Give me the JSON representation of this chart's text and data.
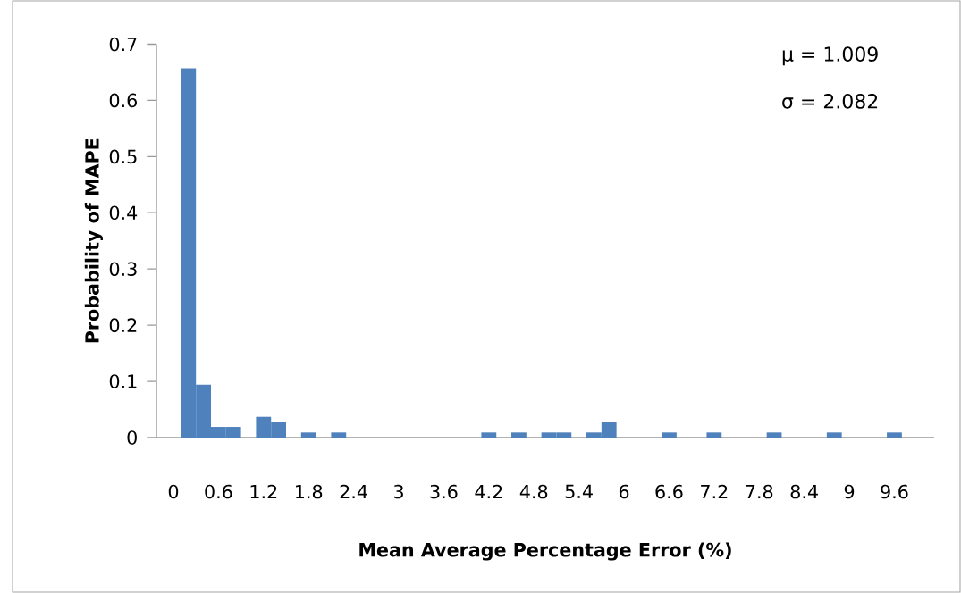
{
  "chart_data": {
    "type": "bar",
    "xlabel": "Mean Average Percentage Error (%)",
    "ylabel": "Probability of MAPE",
    "categories": [
      "0",
      null,
      null,
      "0.6",
      null,
      null,
      "1.2",
      null,
      null,
      "1.8",
      null,
      null,
      "2.4",
      null,
      null,
      "3",
      null,
      null,
      "3.6",
      null,
      null,
      "4.2",
      null,
      null,
      "4.8",
      null,
      null,
      "5.4",
      null,
      null,
      "6",
      null,
      null,
      "6.6",
      null,
      null,
      "7.2",
      null,
      null,
      "7.8",
      null,
      null,
      "8.4",
      null,
      null,
      "9",
      null,
      null,
      "9.6"
    ],
    "values": [
      0,
      0.657,
      0.094,
      0.019,
      0.019,
      0,
      0.037,
      0.028,
      0,
      0.009,
      0,
      0.009,
      0,
      0,
      0,
      0,
      0,
      0,
      0,
      0,
      0,
      0.009,
      0,
      0.009,
      0,
      0.009,
      0.009,
      0,
      0.009,
      0.028,
      0,
      0,
      0,
      0.009,
      0,
      0,
      0.009,
      0,
      0,
      0,
      0.009,
      0,
      0,
      0,
      0.009,
      0,
      0,
      0,
      0.009
    ],
    "color": "#4f81bd",
    "ylim": [
      0,
      0.7
    ],
    "yticks": [
      0,
      0.1,
      0.2,
      0.3,
      0.4,
      0.5,
      0.6,
      0.7
    ],
    "annotations": [
      "μ  = 1.009",
      "σ = 2.082"
    ]
  }
}
